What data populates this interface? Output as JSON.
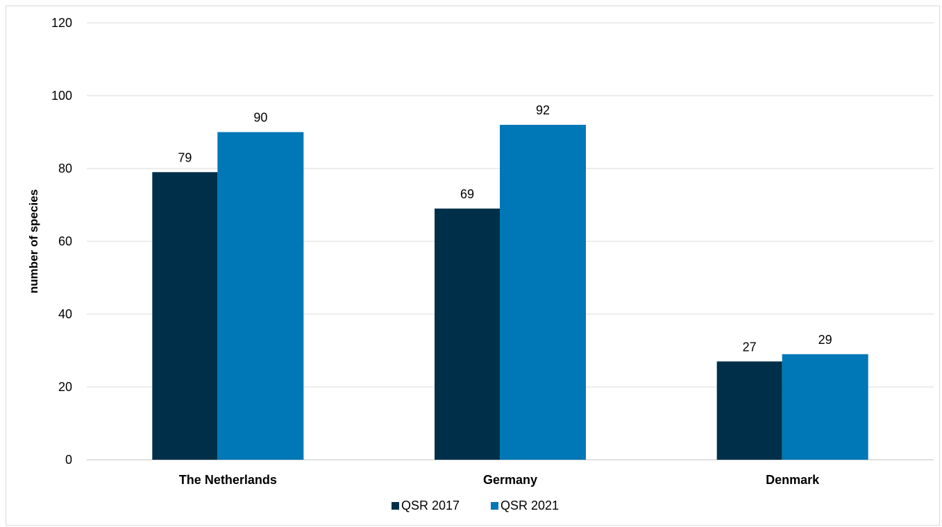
{
  "chart_data": {
    "type": "bar",
    "title": "",
    "xlabel": "",
    "ylabel": "number of species",
    "ylim": [
      0,
      120
    ],
    "yticks": [
      0,
      20,
      40,
      60,
      80,
      100,
      120
    ],
    "grid": true,
    "legend_position": "bottom",
    "categories": [
      "The Netherlands",
      "Germany",
      "Denmark"
    ],
    "series": [
      {
        "name": "QSR 2017",
        "color": "#003049",
        "values": [
          79,
          69,
          27
        ]
      },
      {
        "name": "QSR 2021",
        "color": "#0077b6",
        "values": [
          90,
          92,
          29
        ]
      }
    ]
  }
}
